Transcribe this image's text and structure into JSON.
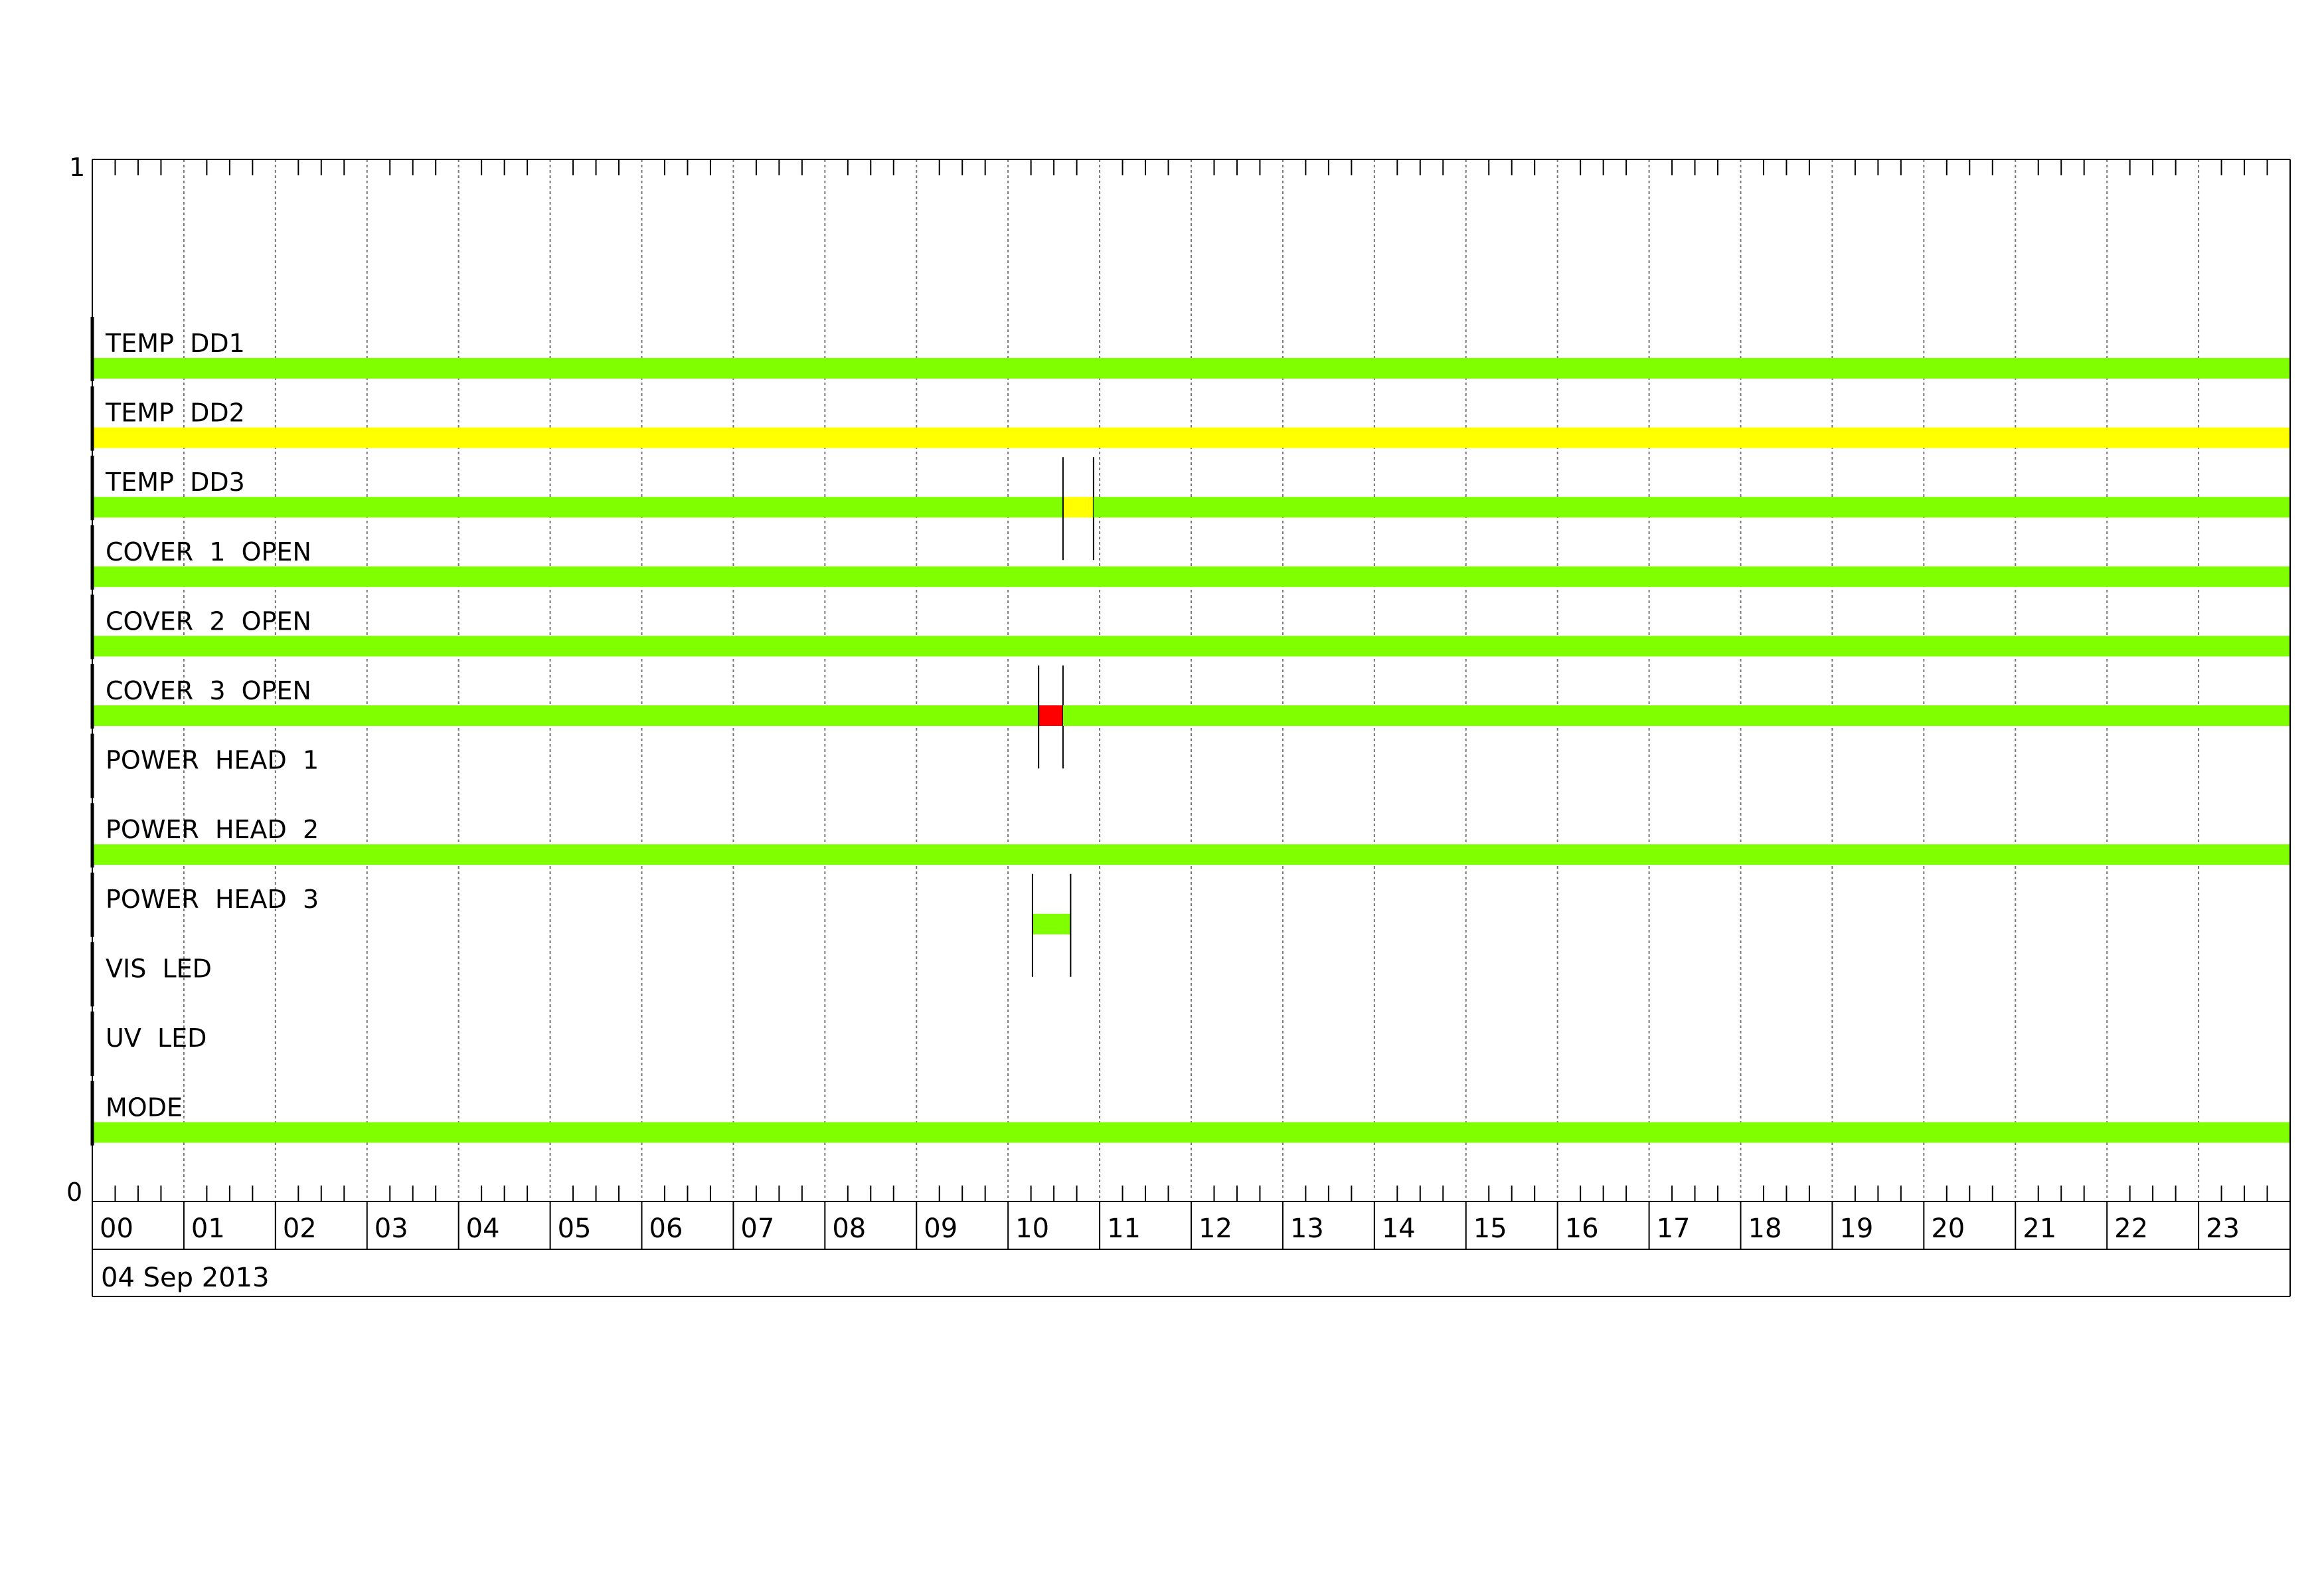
{
  "chart_data": {
    "type": "timeline",
    "date_label": "04 Sep 2013",
    "y_ticks": [
      "1",
      "0"
    ],
    "x_ticks": [
      "00",
      "01",
      "02",
      "03",
      "04",
      "05",
      "06",
      "07",
      "08",
      "09",
      "10",
      "11",
      "12",
      "13",
      "14",
      "15",
      "16",
      "17",
      "18",
      "19",
      "20",
      "21",
      "22",
      "23"
    ],
    "x_range_hours": [
      0,
      24
    ],
    "minor_ticks_per_hour": 4,
    "grid": true,
    "colors": {
      "ok": "#80ff00",
      "warning": "#ffff00",
      "alarm": "#ff0000"
    },
    "rows": [
      {
        "label": "TEMP  DD1",
        "segments": [
          {
            "start": "00:00",
            "end": "24:00",
            "status": "ok"
          }
        ]
      },
      {
        "label": "TEMP  DD2",
        "segments": [
          {
            "start": "00:00",
            "end": "24:00",
            "status": "warning"
          }
        ]
      },
      {
        "label": "TEMP  DD3",
        "segments": [
          {
            "start": "00:00",
            "end": "10:36",
            "status": "ok"
          },
          {
            "start": "10:36",
            "end": "10:56",
            "status": "warning",
            "marked": true
          },
          {
            "start": "10:56",
            "end": "24:00",
            "status": "ok"
          }
        ]
      },
      {
        "label": "COVER  1  OPEN",
        "segments": [
          {
            "start": "00:00",
            "end": "24:00",
            "status": "ok"
          }
        ]
      },
      {
        "label": "COVER  2  OPEN",
        "segments": [
          {
            "start": "00:00",
            "end": "24:00",
            "status": "ok"
          }
        ]
      },
      {
        "label": "COVER  3  OPEN",
        "segments": [
          {
            "start": "00:00",
            "end": "10:20",
            "status": "ok"
          },
          {
            "start": "10:20",
            "end": "10:36",
            "status": "alarm",
            "marked": true
          },
          {
            "start": "10:36",
            "end": "24:00",
            "status": "ok"
          }
        ]
      },
      {
        "label": "POWER  HEAD  1",
        "segments": []
      },
      {
        "label": "POWER  HEAD  2",
        "segments": [
          {
            "start": "00:00",
            "end": "24:00",
            "status": "ok"
          }
        ]
      },
      {
        "label": "POWER  HEAD  3",
        "segments": [
          {
            "start": "10:16",
            "end": "10:41",
            "status": "ok",
            "marked": true
          }
        ]
      },
      {
        "label": "VIS  LED",
        "segments": []
      },
      {
        "label": "UV  LED",
        "segments": []
      },
      {
        "label": "MODE",
        "segments": [
          {
            "start": "00:00",
            "end": "24:00",
            "status": "ok"
          }
        ]
      }
    ]
  }
}
